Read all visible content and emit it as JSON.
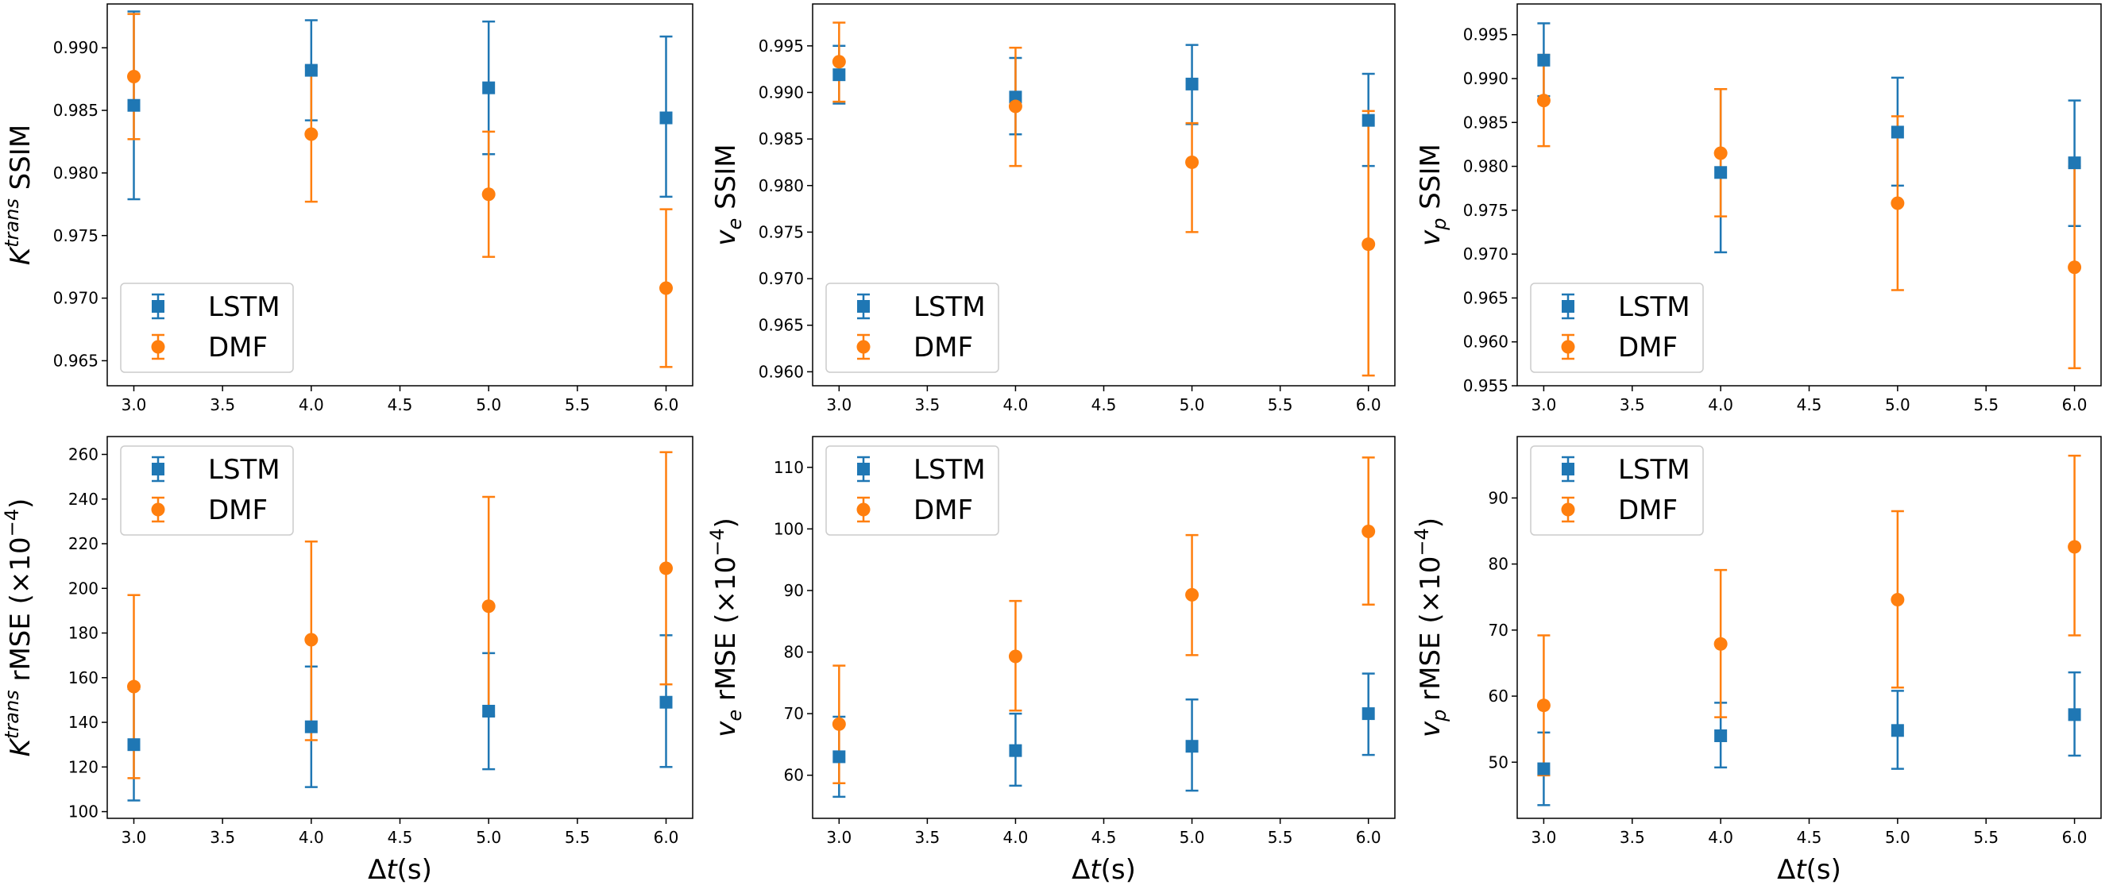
{
  "colors": {
    "LSTM": "#1f77b4",
    "DMF": "#ff7f0e"
  },
  "chart_data": [
    {
      "id": "ktrans-ssim",
      "type": "scatter",
      "title": "",
      "ylabel_main": "K",
      "ylabel_sup": "trans",
      "ylabel_rest": " SSIM",
      "xlabel": "",
      "xlim": [
        2.85,
        6.15
      ],
      "ylim": [
        0.963,
        0.9935
      ],
      "xticks": [
        "3.0",
        "3.5",
        "4.0",
        "4.5",
        "5.0",
        "5.5",
        "6.0"
      ],
      "yticks": [
        "0.965",
        "0.970",
        "0.975",
        "0.980",
        "0.985",
        "0.990"
      ],
      "legend": "lower-left",
      "x": [
        3,
        4,
        5,
        6
      ],
      "series": [
        {
          "name": "LSTM",
          "marker": "square",
          "values": [
            0.9854,
            0.9882,
            0.9868,
            0.9844
          ],
          "err_low": [
            0.9779,
            0.9842,
            0.9815,
            0.9781
          ],
          "err_high": [
            0.9929,
            0.9922,
            0.9921,
            0.9909
          ]
        },
        {
          "name": "DMF",
          "marker": "circle",
          "values": [
            0.9877,
            0.9831,
            0.9783,
            0.9708
          ],
          "err_low": [
            0.9827,
            0.9777,
            0.9733,
            0.9645
          ],
          "err_high": [
            0.9927,
            0.9885,
            0.9833,
            0.9771
          ]
        }
      ]
    },
    {
      "id": "ve-ssim",
      "type": "scatter",
      "title": "",
      "ylabel_main": "v",
      "ylabel_sub": "e",
      "ylabel_rest": " SSIM",
      "xlabel": "",
      "xlim": [
        2.85,
        6.15
      ],
      "ylim": [
        0.9585,
        0.9995
      ],
      "xticks": [
        "3.0",
        "3.5",
        "4.0",
        "4.5",
        "5.0",
        "5.5",
        "6.0"
      ],
      "yticks": [
        "0.960",
        "0.965",
        "0.970",
        "0.975",
        "0.980",
        "0.985",
        "0.990",
        "0.995"
      ],
      "legend": "lower-left",
      "x": [
        3,
        4,
        5,
        6
      ],
      "series": [
        {
          "name": "LSTM",
          "marker": "square",
          "values": [
            0.9919,
            0.9895,
            0.9909,
            0.987
          ],
          "err_low": [
            0.9888,
            0.9855,
            0.9866,
            0.9821
          ],
          "err_high": [
            0.995,
            0.9937,
            0.9951,
            0.992
          ]
        },
        {
          "name": "DMF",
          "marker": "circle",
          "values": [
            0.9933,
            0.9885,
            0.9825,
            0.9737
          ],
          "err_low": [
            0.989,
            0.9821,
            0.975,
            0.9596
          ],
          "err_high": [
            0.9975,
            0.9948,
            0.9867,
            0.988
          ]
        }
      ]
    },
    {
      "id": "vp-ssim",
      "type": "scatter",
      "title": "",
      "ylabel_main": "v",
      "ylabel_sub": "p",
      "ylabel_rest": " SSIM",
      "xlabel": "",
      "xlim": [
        2.85,
        6.15
      ],
      "ylim": [
        0.955,
        0.9985
      ],
      "xticks": [
        "3.0",
        "3.5",
        "4.0",
        "4.5",
        "5.0",
        "5.5",
        "6.0"
      ],
      "yticks": [
        "0.955",
        "0.960",
        "0.965",
        "0.970",
        "0.975",
        "0.980",
        "0.985",
        "0.990",
        "0.995"
      ],
      "legend": "lower-left",
      "x": [
        3,
        4,
        5,
        6
      ],
      "series": [
        {
          "name": "LSTM",
          "marker": "square",
          "values": [
            0.9921,
            0.9793,
            0.9839,
            0.9804
          ],
          "err_low": [
            0.988,
            0.9702,
            0.9778,
            0.9732
          ],
          "err_high": [
            0.9963,
            0.9888,
            0.9901,
            0.9875
          ]
        },
        {
          "name": "DMF",
          "marker": "circle",
          "values": [
            0.9875,
            0.9815,
            0.9758,
            0.9685
          ],
          "err_low": [
            0.9823,
            0.9743,
            0.9659,
            0.957
          ],
          "err_high": [
            0.9927,
            0.9888,
            0.9857,
            0.98
          ]
        }
      ]
    },
    {
      "id": "ktrans-rmse",
      "type": "scatter",
      "title": "",
      "ylabel_main": "K",
      "ylabel_sup": "trans",
      "ylabel_rest": " rMSE (×10",
      "ylabel_exp": "−4",
      "ylabel_end": ")",
      "xlabel_main": "Δ",
      "xlabel_italic": "t",
      "xlabel_rest": "(s)",
      "xlim": [
        2.85,
        6.15
      ],
      "ylim": [
        97,
        268
      ],
      "xticks": [
        "3.0",
        "3.5",
        "4.0",
        "4.5",
        "5.0",
        "5.5",
        "6.0"
      ],
      "yticks": [
        "100",
        "120",
        "140",
        "160",
        "180",
        "200",
        "220",
        "240",
        "260"
      ],
      "legend": "upper-left",
      "x": [
        3,
        4,
        5,
        6
      ],
      "series": [
        {
          "name": "LSTM",
          "marker": "square",
          "values": [
            130,
            138,
            145,
            149
          ],
          "err_low": [
            105,
            111,
            119,
            120
          ],
          "err_high": [
            155,
            165,
            171,
            179
          ]
        },
        {
          "name": "DMF",
          "marker": "circle",
          "values": [
            156,
            177,
            192,
            209
          ],
          "err_low": [
            115,
            132,
            143,
            157
          ],
          "err_high": [
            197,
            221,
            241,
            261
          ]
        }
      ]
    },
    {
      "id": "ve-rmse",
      "type": "scatter",
      "title": "",
      "ylabel_main": "v",
      "ylabel_sub": "e",
      "ylabel_rest": " rMSE (×10",
      "ylabel_exp": "−4",
      "ylabel_end": ")",
      "xlabel_main": "Δ",
      "xlabel_italic": "t",
      "xlabel_rest": "(s)",
      "xlim": [
        2.85,
        6.15
      ],
      "ylim": [
        53,
        115
      ],
      "xticks": [
        "3.0",
        "3.5",
        "4.0",
        "4.5",
        "5.0",
        "5.5",
        "6.0"
      ],
      "yticks": [
        "60",
        "70",
        "80",
        "90",
        "100",
        "110"
      ],
      "legend": "upper-left",
      "x": [
        3,
        4,
        5,
        6
      ],
      "series": [
        {
          "name": "LSTM",
          "marker": "square",
          "values": [
            63,
            64,
            64.7,
            70
          ],
          "err_low": [
            56.5,
            58.3,
            57.5,
            63.3
          ],
          "err_high": [
            69.5,
            70,
            72.3,
            76.5
          ]
        },
        {
          "name": "DMF",
          "marker": "circle",
          "values": [
            68.3,
            79.3,
            89.3,
            99.6
          ],
          "err_low": [
            58.7,
            70.5,
            79.5,
            87.7
          ],
          "err_high": [
            77.8,
            88.3,
            99,
            111.6
          ]
        }
      ]
    },
    {
      "id": "vp-rmse",
      "type": "scatter",
      "title": "",
      "ylabel_main": "v",
      "ylabel_sub": "p",
      "ylabel_rest": " rMSE (×10",
      "ylabel_exp": "−4",
      "ylabel_end": ")",
      "xlabel_main": "Δ",
      "xlabel_italic": "t",
      "xlabel_rest": "(s)",
      "xlim": [
        2.85,
        6.15
      ],
      "ylim": [
        41.5,
        99.3
      ],
      "xticks": [
        "3.0",
        "3.5",
        "4.0",
        "4.5",
        "5.0",
        "5.5",
        "6.0"
      ],
      "yticks": [
        "50",
        "60",
        "70",
        "80",
        "90"
      ],
      "legend": "upper-left",
      "x": [
        3,
        4,
        5,
        6
      ],
      "series": [
        {
          "name": "LSTM",
          "marker": "square",
          "values": [
            49,
            54,
            54.8,
            57.2
          ],
          "err_low": [
            43.5,
            49.2,
            49,
            51
          ],
          "err_high": [
            54.5,
            59,
            60.8,
            63.6
          ]
        },
        {
          "name": "DMF",
          "marker": "circle",
          "values": [
            58.6,
            67.9,
            74.6,
            82.6
          ],
          "err_low": [
            48,
            56.8,
            61.3,
            69.2
          ],
          "err_high": [
            69.2,
            79.1,
            88,
            96.4
          ]
        }
      ]
    }
  ]
}
